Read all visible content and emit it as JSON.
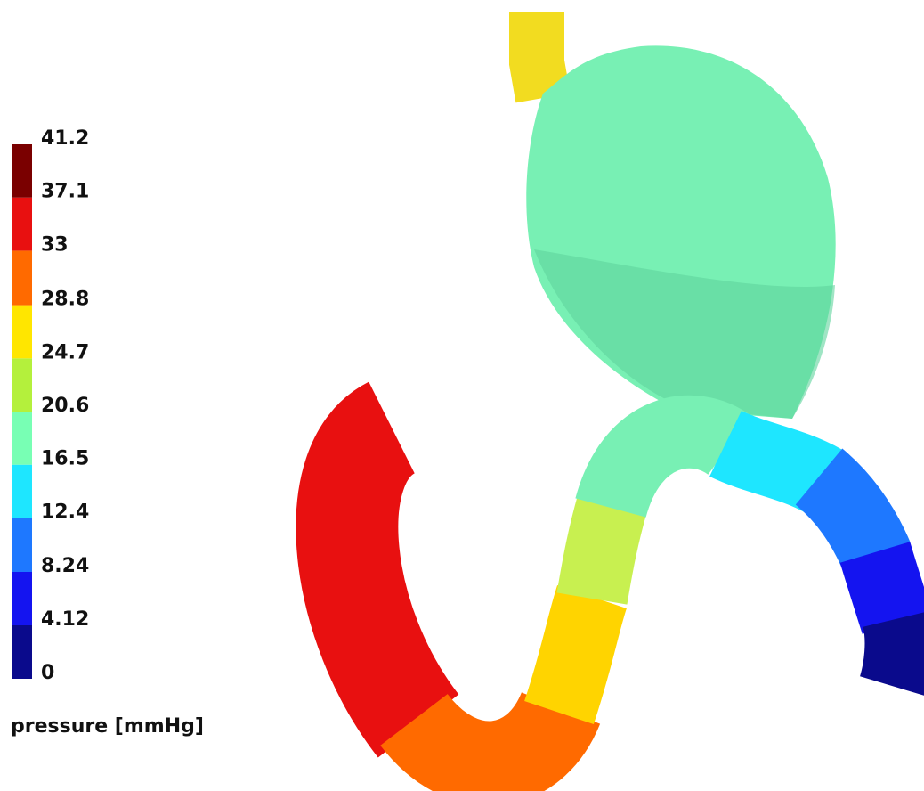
{
  "chart_data": {
    "type": "colorbar",
    "title": "pressure [mmHg]",
    "ylim": [
      0,
      41.2
    ],
    "yticks": [
      0,
      4.12,
      8.24,
      12.4,
      16.5,
      20.6,
      24.7,
      28.8,
      33,
      37.1,
      41.2
    ],
    "colors": [
      "#0a0a8c",
      "#1414f0",
      "#1e78ff",
      "#1ee6ff",
      "#78ffb4",
      "#b4f03c",
      "#ffe600",
      "#ff6a00",
      "#e81010",
      "#7a0000"
    ]
  }
}
